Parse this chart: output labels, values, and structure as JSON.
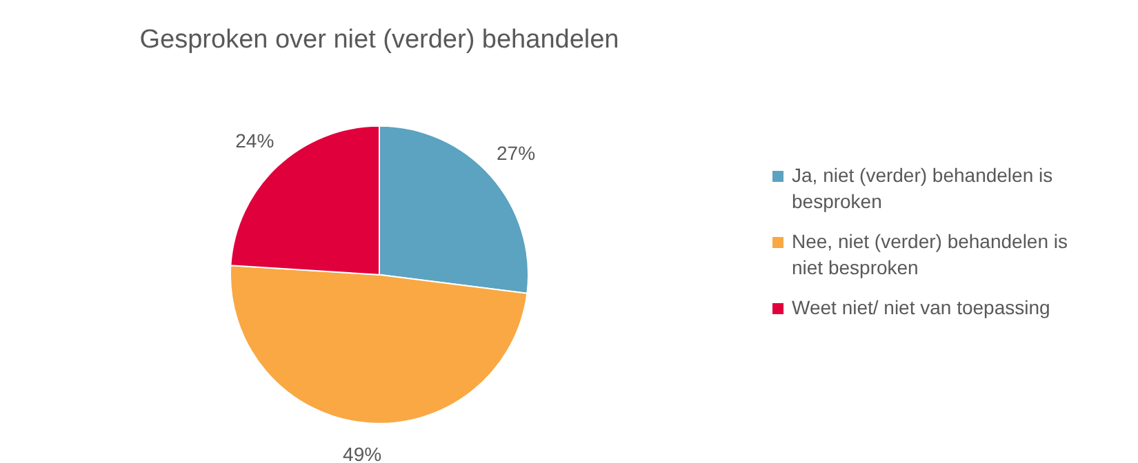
{
  "chart_data": {
    "type": "pie",
    "title": "Gesproken over niet (verder) behandelen",
    "categories": [
      "Ja, niet (verder) behandelen is besproken",
      "Nee, niet (verder) behandelen is niet besproken",
      "Weet niet/ niet van toepassing"
    ],
    "values": [
      27,
      49,
      24
    ],
    "colors": [
      "#5ba3c0",
      "#f9a843",
      "#e0003c"
    ],
    "value_labels": [
      "27%",
      "49%",
      "24%"
    ],
    "legend": "right"
  }
}
